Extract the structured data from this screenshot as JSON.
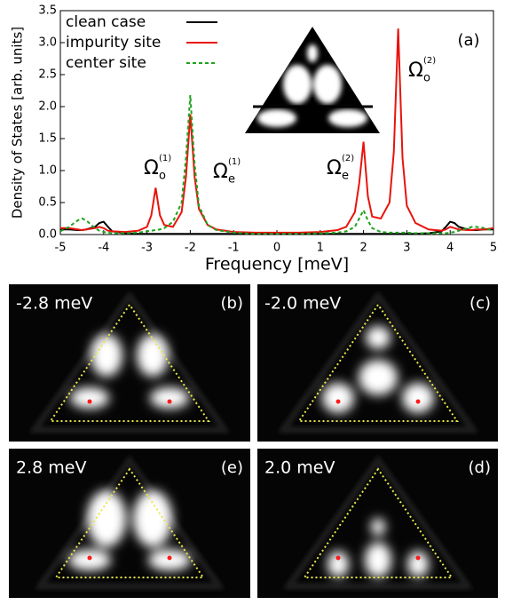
{
  "chart_data": {
    "type": "line",
    "ylabel": "Density of States [arb. units]",
    "xlabel": "Frequency  [meV]",
    "panel_label": "(a)",
    "annotations": [
      {
        "symbol": "Ω",
        "sub": "o",
        "sup": "(1)"
      },
      {
        "symbol": "Ω",
        "sub": "e",
        "sup": "(1)"
      },
      {
        "symbol": "Ω",
        "sub": "e",
        "sup": "(2)"
      },
      {
        "symbol": "Ω",
        "sub": "o",
        "sup": "(2)"
      }
    ],
    "xlim": [
      -5,
      5
    ],
    "xticks": [
      -5,
      -4,
      -3,
      -2,
      -1,
      0,
      1,
      2,
      3,
      4,
      5
    ],
    "ylim": [
      0,
      3.5
    ],
    "yticks": [
      {
        "value": 0,
        "label": "0.0"
      },
      0.5,
      {
        "value": 1,
        "label": "1.0"
      },
      1.5,
      {
        "value": 2,
        "label": "2.0"
      },
      2.5,
      {
        "value": 3,
        "label": "3.0"
      },
      3.5
    ],
    "x": [
      -5,
      -4.8,
      -4.6,
      -4.5,
      -4.4,
      -4.2,
      -4.1,
      -4,
      -3.9,
      -3.8,
      -3.5,
      -3.2,
      -3,
      -2.9,
      -2.8,
      -2.7,
      -2.6,
      -2.4,
      -2.2,
      -2.1,
      -2,
      -1.9,
      -1.8,
      -1.6,
      -1.4,
      -1,
      -0.5,
      0,
      0.5,
      1,
      1.4,
      1.6,
      1.8,
      1.9,
      2,
      2.1,
      2.2,
      2.4,
      2.6,
      2.7,
      2.8,
      2.9,
      3,
      3.2,
      3.5,
      3.8,
      3.9,
      4,
      4.1,
      4.2,
      4.4,
      4.5,
      4.6,
      4.8,
      5
    ],
    "series": [
      {
        "name": "clean case",
        "color": "#000000",
        "dashed": false,
        "values": [
          0.08,
          0.08,
          0.07,
          0.07,
          0.08,
          0.12,
          0.18,
          0.2,
          0.12,
          0.05,
          0.02,
          0.01,
          0.01,
          0.01,
          0.01,
          0.01,
          0.01,
          0.01,
          0.01,
          0.01,
          0.01,
          0.01,
          0.01,
          0.01,
          0.01,
          0.01,
          0.01,
          0.01,
          0.01,
          0.01,
          0.01,
          0.01,
          0.01,
          0.01,
          0.01,
          0.01,
          0.01,
          0.01,
          0.01,
          0.01,
          0.01,
          0.01,
          0.01,
          0.01,
          0.02,
          0.05,
          0.12,
          0.2,
          0.18,
          0.12,
          0.08,
          0.07,
          0.07,
          0.08,
          0.08
        ]
      },
      {
        "name": "impurity site",
        "color": "#e8140c",
        "dashed": false,
        "values": [
          0.1,
          0.1,
          0.08,
          0.07,
          0.08,
          0.1,
          0.12,
          0.1,
          0.06,
          0.05,
          0.04,
          0.06,
          0.12,
          0.3,
          0.73,
          0.3,
          0.15,
          0.12,
          0.35,
          0.9,
          1.88,
          0.9,
          0.4,
          0.15,
          0.08,
          0.04,
          0.03,
          0.03,
          0.03,
          0.04,
          0.07,
          0.12,
          0.35,
          0.8,
          1.45,
          0.6,
          0.28,
          0.25,
          0.5,
          1.3,
          3.22,
          1.2,
          0.45,
          0.18,
          0.08,
          0.06,
          0.08,
          0.12,
          0.1,
          0.08,
          0.07,
          0.07,
          0.08,
          0.08,
          0.1
        ]
      },
      {
        "name": "center site",
        "color": "#1fa31f",
        "dashed": true,
        "values": [
          0.05,
          0.12,
          0.22,
          0.25,
          0.22,
          0.1,
          0.06,
          0.04,
          0.03,
          0.02,
          0.02,
          0.03,
          0.05,
          0.06,
          0.07,
          0.08,
          0.1,
          0.2,
          0.5,
          1.2,
          2.18,
          1.1,
          0.45,
          0.15,
          0.07,
          0.03,
          0.01,
          0.01,
          0.01,
          0.02,
          0.03,
          0.05,
          0.12,
          0.25,
          0.38,
          0.22,
          0.1,
          0.04,
          0.03,
          0.03,
          0.03,
          0.03,
          0.03,
          0.02,
          0.02,
          0.02,
          0.02,
          0.03,
          0.04,
          0.06,
          0.1,
          0.12,
          0.12,
          0.1,
          0.06
        ]
      }
    ]
  },
  "panels": [
    {
      "energy": "-2.8 meV",
      "label": "(b)"
    },
    {
      "energy": "-2.0 meV",
      "label": "(c)"
    },
    {
      "energy": "2.8 meV",
      "label": "(e)"
    },
    {
      "energy": "2.0 meV",
      "label": "(d)"
    }
  ]
}
